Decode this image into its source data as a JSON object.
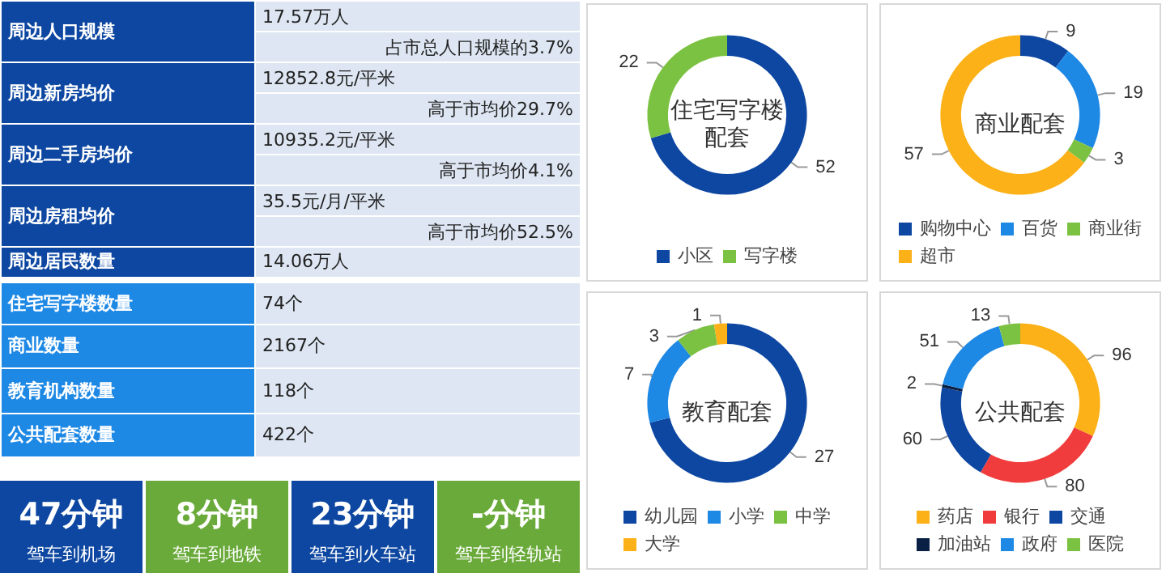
{
  "chart_data": [
    {
      "type": "other",
      "annotations": [
        "周边人口规模",
        "17.57万人",
        "占市总人口规模的3.7%",
        "周边新房均价",
        "12852.8元/平米",
        "高于市均价29.7%",
        "周边二手房均价",
        "10935.2元/平米",
        "高于市均价4.1%",
        "周边房租均价",
        "35.5元/月/平米",
        "高于市均价52.5%",
        "周边居民数量",
        "14.06万人",
        "住宅写字楼数量",
        "74个",
        "商业数量",
        "2167个",
        "教育机构数量",
        "118个",
        "公共配套数量",
        "422个"
      ]
    },
    {
      "type": "other",
      "annotations": [
        "47分钟",
        "驾车到机场",
        "8分钟",
        "驾车到地铁",
        "23分钟",
        "驾车到火车站",
        "-分钟",
        "驾车到轻轨站"
      ]
    },
    {
      "type": "donut",
      "title": "住宅写字楼配套",
      "categories": [
        "小区",
        "写字楼"
      ],
      "values": [
        52,
        22
      ],
      "colors": [
        "#0d47a1",
        "#7cc242"
      ],
      "legend": "bottom",
      "data_labels": true
    },
    {
      "type": "donut",
      "title": "商业配套",
      "categories": [
        "购物中心",
        "百货",
        "商业街",
        "超市"
      ],
      "values": [
        9,
        19,
        3,
        57
      ],
      "colors": [
        "#0d47a1",
        "#1e88e5",
        "#7cc242",
        "#fbb117"
      ],
      "legend": "bottom",
      "data_labels": true
    },
    {
      "type": "donut",
      "title": "教育配套",
      "categories": [
        "幼儿园",
        "小学",
        "中学",
        "大学"
      ],
      "values": [
        27,
        7,
        3,
        1
      ],
      "colors": [
        "#0d47a1",
        "#1e88e5",
        "#7cc242",
        "#fbb117"
      ],
      "legend": "bottom",
      "data_labels": true
    },
    {
      "type": "donut",
      "title": "公共配套",
      "categories": [
        "药店",
        "银行",
        "交通",
        "加油站",
        "政府",
        "医院"
      ],
      "values": [
        96,
        80,
        60,
        2,
        51,
        13
      ],
      "colors": [
        "#fbb117",
        "#f03c3c",
        "#0d47a1",
        "#0a1f44",
        "#1e88e5",
        "#7cc242"
      ],
      "legend": "bottom",
      "data_labels": true
    }
  ]
}
